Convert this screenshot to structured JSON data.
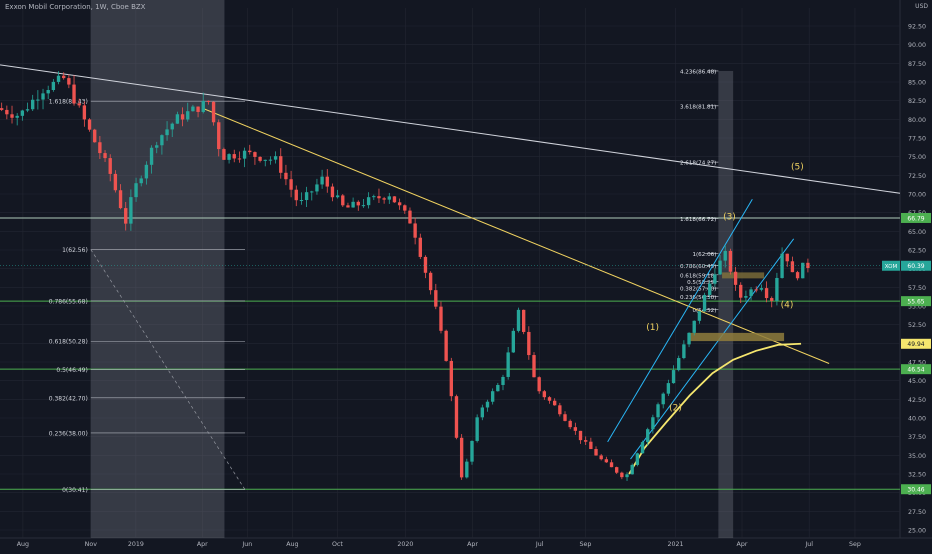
{
  "header": {
    "title": "Exxon Mobil Corporation, 1W, Cboe BZX",
    "currency": "USD"
  },
  "colors": {
    "background": "#131722",
    "up": "#26a69a",
    "down": "#ef5350",
    "grid": "#232632",
    "trend": "#d1d4dc",
    "fib_yellow": "#f0d260",
    "channel": "#29b6f6",
    "hline": "#4caf50",
    "zone": "#787b86",
    "box": "#8f7c3c"
  },
  "chart_data": {
    "type": "candlestick",
    "symbol": "XOM",
    "y_axis": {
      "min": 25,
      "max": 92.5,
      "ticks": [
        25,
        27.5,
        30,
        32.5,
        35,
        37.5,
        40,
        42.5,
        45,
        47.5,
        50,
        52.5,
        55,
        57.5,
        60,
        62.5,
        65,
        67.5,
        70,
        72.5,
        75,
        77.5,
        80,
        82.5,
        85,
        87.5,
        90,
        92.5
      ]
    },
    "x_axis": {
      "range": [
        "2018-07-01",
        "2021-11-01"
      ],
      "ticks": [
        {
          "date": "2018-08-01",
          "label": "Aug"
        },
        {
          "date": "2018-11-01",
          "label": "Nov"
        },
        {
          "date": "2019-01-01",
          "label": "2019"
        },
        {
          "date": "2019-04-01",
          "label": "Apr"
        },
        {
          "date": "2019-06-01",
          "label": "Jun"
        },
        {
          "date": "2019-08-01",
          "label": "Aug"
        },
        {
          "date": "2019-10-01",
          "label": "Oct"
        },
        {
          "date": "2020-01-01",
          "label": "2020"
        },
        {
          "date": "2020-04-01",
          "label": "Apr"
        },
        {
          "date": "2020-07-01",
          "label": "Jul"
        },
        {
          "date": "2020-09-01",
          "label": "Sep"
        },
        {
          "date": "2021-01-01",
          "label": "2021"
        },
        {
          "date": "2021-04-01",
          "label": "Apr"
        },
        {
          "date": "2021-07-01",
          "label": "Jul"
        },
        {
          "date": "2021-09-01",
          "label": "Sep"
        }
      ]
    },
    "price_path": [
      [
        "2018-07-01",
        81.5
      ],
      [
        "2018-08-01",
        80.5
      ],
      [
        "2018-09-01",
        84
      ],
      [
        "2018-10-01",
        85.5
      ],
      [
        "2018-11-01",
        79
      ],
      [
        "2018-12-01",
        73
      ],
      [
        "2018-12-24",
        66
      ],
      [
        "2019-01-01",
        70
      ],
      [
        "2019-02-01",
        77
      ],
      [
        "2019-03-01",
        80
      ],
      [
        "2019-04-15",
        82.4
      ],
      [
        "2019-05-01",
        75
      ],
      [
        "2019-06-01",
        75.5
      ],
      [
        "2019-07-15",
        74.5
      ],
      [
        "2019-08-15",
        68.5
      ],
      [
        "2019-09-15",
        72
      ],
      [
        "2019-10-15",
        68
      ],
      [
        "2019-11-15",
        69
      ],
      [
        "2019-12-15",
        70
      ],
      [
        "2020-01-15",
        66
      ],
      [
        "2020-02-15",
        55
      ],
      [
        "2020-03-01",
        48
      ],
      [
        "2020-03-23",
        31.5
      ],
      [
        "2020-04-15",
        41
      ],
      [
        "2020-05-15",
        45
      ],
      [
        "2020-06-08",
        54.5
      ],
      [
        "2020-07-01",
        44
      ],
      [
        "2020-08-01",
        41
      ],
      [
        "2020-09-01",
        37
      ],
      [
        "2020-10-01",
        34
      ],
      [
        "2020-10-30",
        32
      ],
      [
        "2020-12-01",
        39
      ],
      [
        "2021-01-01",
        46
      ],
      [
        "2021-02-01",
        53
      ],
      [
        "2021-03-01",
        60
      ],
      [
        "2021-03-15",
        62
      ],
      [
        "2021-04-01",
        56
      ],
      [
        "2021-05-01",
        58
      ],
      [
        "2021-05-15",
        55.5
      ],
      [
        "2021-06-01",
        63
      ],
      [
        "2021-06-15",
        58.5
      ],
      [
        "2021-06-28",
        60.39
      ]
    ],
    "trendlines": [
      {
        "kind": "long-resistance",
        "from": [
          "2018-07-01",
          87.3
        ],
        "to": [
          "2021-11-01",
          70.1
        ]
      },
      {
        "kind": "downtrend",
        "from": [
          "2019-04-01",
          81.5
        ],
        "to": [
          "2021-07-28",
          47.3
        ]
      }
    ],
    "fib_left": {
      "range_dates": [
        "2018-11-01",
        "2019-05-01"
      ],
      "levels": [
        {
          "label": "1.618(82.43)",
          "price": 82.43
        },
        {
          "label": "1(62.56)",
          "price": 62.56
        },
        {
          "label": "0.786(55.68)",
          "price": 55.68
        },
        {
          "label": "0.618(50.28)",
          "price": 50.28
        },
        {
          "label": "0.5(46.49)",
          "price": 46.49
        },
        {
          "label": "0.382(42.70)",
          "price": 42.7
        },
        {
          "label": "0.236(38.00)",
          "price": 38.0
        },
        {
          "label": "0(30.41)",
          "price": 30.41
        }
      ]
    },
    "fib_right": {
      "range_dates": [
        "2021-02-28",
        "2021-03-20"
      ],
      "levels": [
        {
          "label": "4.236(86.48)",
          "price": 86.48
        },
        {
          "label": "3.618(81.81)",
          "price": 81.81
        },
        {
          "label": "2.618(74.27)",
          "price": 74.27
        },
        {
          "label": "1.618(66.72)",
          "price": 66.72
        },
        {
          "label": "1(62.06)",
          "price": 62.06
        },
        {
          "label": "0.786(60.45)",
          "price": 60.45
        },
        {
          "label": "0.618(59.18)",
          "price": 59.18
        },
        {
          "label": "0.5(58.29)",
          "price": 58.29
        },
        {
          "label": "0.382(57.40)",
          "price": 57.4
        },
        {
          "label": "0.236(56.30)",
          "price": 56.3
        },
        {
          "label": "0(54.52)",
          "price": 54.52
        }
      ]
    },
    "horizontal_levels": [
      {
        "price": 66.79,
        "label": "66.79"
      },
      {
        "price": 55.65,
        "label": "55.65"
      },
      {
        "price": 46.54,
        "label": "46.54"
      },
      {
        "price": 30.46,
        "label": "30.46"
      }
    ],
    "price_badges": [
      {
        "price": 60.39,
        "label": "60.39",
        "symbol": "XOM"
      },
      {
        "price": 49.94,
        "label": "49.94"
      }
    ],
    "wave_labels": [
      {
        "text": "(5)",
        "date": "2021-06-15",
        "price": 73.3
      },
      {
        "text": "(3)",
        "date": "2021-03-15",
        "price": 66.6
      },
      {
        "text": "(4)",
        "date": "2021-06-01",
        "price": 54.8
      },
      {
        "text": "(1)",
        "date": "2020-12-01",
        "price": 51.8
      },
      {
        "text": "(2)",
        "date": "2021-01-01",
        "price": 41.0
      }
    ]
  }
}
